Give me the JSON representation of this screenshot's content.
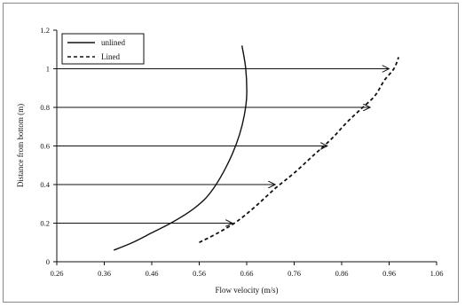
{
  "chart_data": {
    "type": "line",
    "title": "",
    "xlabel": "Flow velocity (m/s)",
    "ylabel": "Distance from bottom (m)",
    "xlim": [
      0.26,
      1.06
    ],
    "ylim": [
      0,
      1.2
    ],
    "xticks": [
      0.26,
      0.36,
      0.46,
      0.56,
      0.66,
      0.76,
      0.86,
      0.96,
      1.06
    ],
    "xtick_labels": [
      "0.26",
      "0.36",
      "0.46",
      "0.56",
      "0.66",
      "0.76",
      "0.86",
      "0.96",
      "1.06"
    ],
    "yticks": [
      0,
      0.2,
      0.4,
      0.6,
      0.8,
      1,
      1.2
    ],
    "ytick_labels": [
      "0",
      "0.2",
      "0.4",
      "0.6",
      "0.8",
      "1",
      "1.2"
    ],
    "grid": false,
    "legend_position": "top-left",
    "series": [
      {
        "name": "unlined",
        "style": "solid",
        "color": "#111111",
        "x": [
          0.38,
          0.42,
          0.46,
          0.5,
          0.54,
          0.57,
          0.59,
          0.61,
          0.63,
          0.645,
          0.655,
          0.66,
          0.658,
          0.65
        ],
        "y": [
          0.06,
          0.1,
          0.15,
          0.2,
          0.26,
          0.32,
          0.38,
          0.46,
          0.56,
          0.66,
          0.76,
          0.86,
          1.0,
          1.12
        ]
      },
      {
        "name": "Lined",
        "style": "dashed",
        "color": "#111111",
        "x": [
          0.56,
          0.6,
          0.64,
          0.68,
          0.72,
          0.76,
          0.8,
          0.84,
          0.87,
          0.9,
          0.93,
          0.95,
          0.97,
          0.98
        ],
        "y": [
          0.1,
          0.15,
          0.21,
          0.29,
          0.38,
          0.46,
          0.55,
          0.64,
          0.72,
          0.79,
          0.86,
          0.94,
          1.0,
          1.06
        ]
      }
    ],
    "arrows": [
      {
        "y": 0.2,
        "x_start": 0.26,
        "x_end": 0.63
      },
      {
        "y": 0.4,
        "x_start": 0.26,
        "x_end": 0.72
      },
      {
        "y": 0.6,
        "x_start": 0.26,
        "x_end": 0.83
      },
      {
        "y": 0.8,
        "x_start": 0.26,
        "x_end": 0.92
      },
      {
        "y": 1.0,
        "x_start": 0.26,
        "x_end": 0.96
      }
    ]
  }
}
